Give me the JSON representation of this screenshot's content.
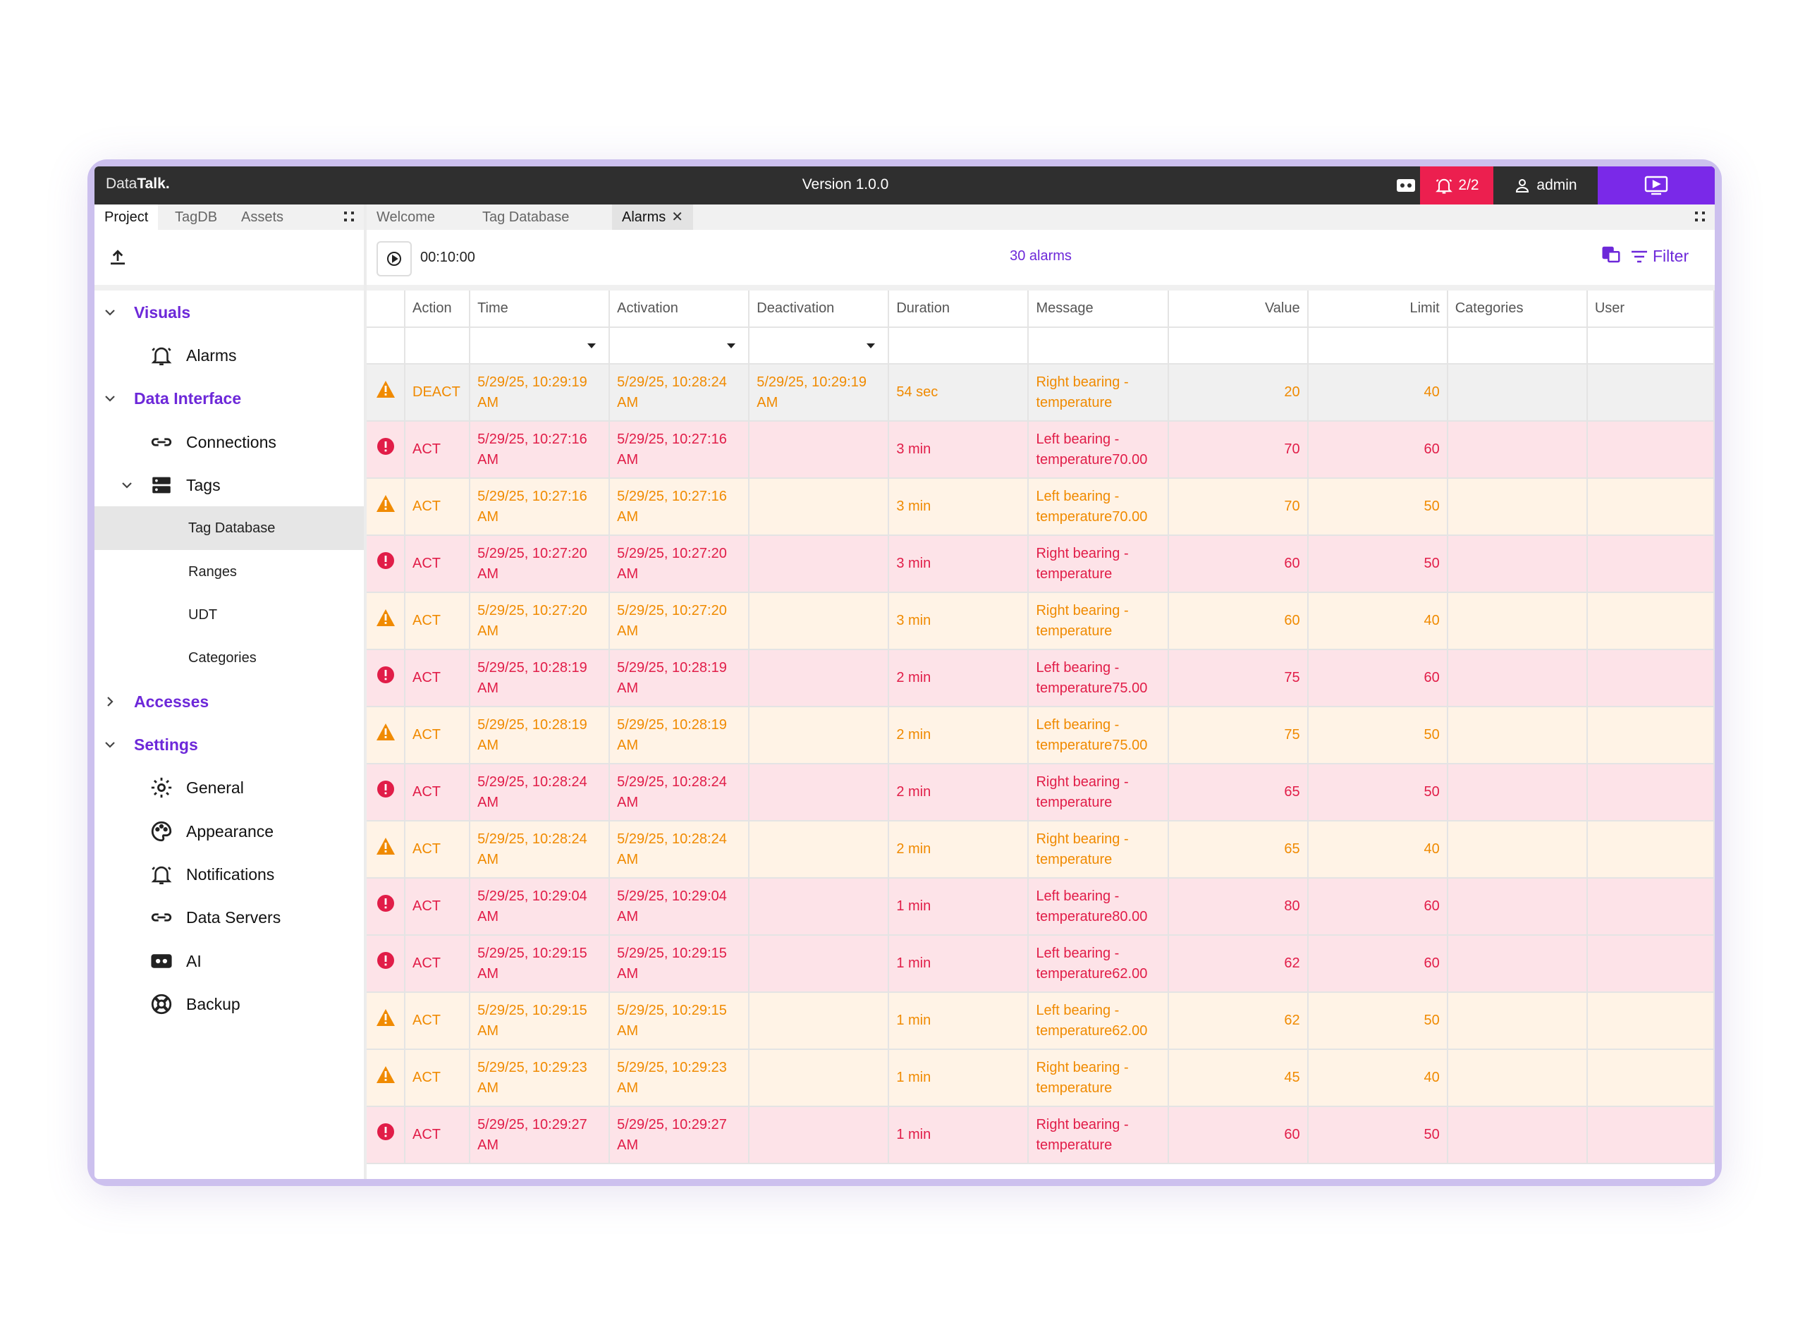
{
  "app": {
    "brand_prefix": "Data",
    "brand_bold": "Talk.",
    "version": "Version 1.0.0",
    "alarm_badge": "2/2",
    "user": "admin"
  },
  "left_tabs": [
    "Project",
    "TagDB",
    "Assets"
  ],
  "tree": {
    "visuals": "Visuals",
    "alarms": "Alarms",
    "data_interface": "Data Interface",
    "connections": "Connections",
    "tags": "Tags",
    "tag_database": "Tag Database",
    "ranges": "Ranges",
    "udt": "UDT",
    "categories": "Categories",
    "accesses": "Accesses",
    "settings": "Settings",
    "general": "General",
    "appearance": "Appearance",
    "notifications": "Notifications",
    "data_servers": "Data Servers",
    "ai": "AI",
    "backup": "Backup"
  },
  "doc_tabs": [
    "Welcome",
    "Tag Database",
    "Alarms"
  ],
  "toolbar": {
    "timer": "00:10:00",
    "count": "30 alarms",
    "filter": "Filter"
  },
  "columns": [
    "",
    "Action",
    "Time",
    "Activation",
    "Deactivation",
    "Duration",
    "Message",
    "Value",
    "Limit",
    "Categories",
    "User"
  ],
  "rows": [
    {
      "sev": "warning",
      "state": "deact",
      "action": "DEACT",
      "time": [
        "5/29/25, 10:29:19",
        "AM"
      ],
      "activation": [
        "5/29/25, 10:28:24",
        "AM"
      ],
      "deactivation": [
        "5/29/25, 10:29:19",
        "AM"
      ],
      "duration": "54 sec",
      "message": [
        "Right bearing -",
        "temperature"
      ],
      "value": "20",
      "limit": "40"
    },
    {
      "sev": "alarm",
      "state": "alarm",
      "action": "ACT",
      "time": [
        "5/29/25, 10:27:16",
        "AM"
      ],
      "activation": [
        "5/29/25, 10:27:16",
        "AM"
      ],
      "deactivation": [
        "",
        ""
      ],
      "duration": "3 min",
      "message": [
        "Left bearing -",
        "temperature70.00"
      ],
      "value": "70",
      "limit": "60"
    },
    {
      "sev": "warning",
      "state": "warn",
      "action": "ACT",
      "time": [
        "5/29/25, 10:27:16",
        "AM"
      ],
      "activation": [
        "5/29/25, 10:27:16",
        "AM"
      ],
      "deactivation": [
        "",
        ""
      ],
      "duration": "3 min",
      "message": [
        "Left bearing -",
        "temperature70.00"
      ],
      "value": "70",
      "limit": "50"
    },
    {
      "sev": "alarm",
      "state": "alarm",
      "action": "ACT",
      "time": [
        "5/29/25, 10:27:20",
        "AM"
      ],
      "activation": [
        "5/29/25, 10:27:20",
        "AM"
      ],
      "deactivation": [
        "",
        ""
      ],
      "duration": "3 min",
      "message": [
        "Right bearing -",
        "temperature"
      ],
      "value": "60",
      "limit": "50"
    },
    {
      "sev": "warning",
      "state": "warn",
      "action": "ACT",
      "time": [
        "5/29/25, 10:27:20",
        "AM"
      ],
      "activation": [
        "5/29/25, 10:27:20",
        "AM"
      ],
      "deactivation": [
        "",
        ""
      ],
      "duration": "3 min",
      "message": [
        "Right bearing -",
        "temperature"
      ],
      "value": "60",
      "limit": "40"
    },
    {
      "sev": "alarm",
      "state": "alarm",
      "action": "ACT",
      "time": [
        "5/29/25, 10:28:19",
        "AM"
      ],
      "activation": [
        "5/29/25, 10:28:19",
        "AM"
      ],
      "deactivation": [
        "",
        ""
      ],
      "duration": "2 min",
      "message": [
        "Left bearing -",
        "temperature75.00"
      ],
      "value": "75",
      "limit": "60"
    },
    {
      "sev": "warning",
      "state": "warn",
      "action": "ACT",
      "time": [
        "5/29/25, 10:28:19",
        "AM"
      ],
      "activation": [
        "5/29/25, 10:28:19",
        "AM"
      ],
      "deactivation": [
        "",
        ""
      ],
      "duration": "2 min",
      "message": [
        "Left bearing -",
        "temperature75.00"
      ],
      "value": "75",
      "limit": "50"
    },
    {
      "sev": "alarm",
      "state": "alarm",
      "action": "ACT",
      "time": [
        "5/29/25, 10:28:24",
        "AM"
      ],
      "activation": [
        "5/29/25, 10:28:24",
        "AM"
      ],
      "deactivation": [
        "",
        ""
      ],
      "duration": "2 min",
      "message": [
        "Right bearing -",
        "temperature"
      ],
      "value": "65",
      "limit": "50"
    },
    {
      "sev": "warning",
      "state": "warn",
      "action": "ACT",
      "time": [
        "5/29/25, 10:28:24",
        "AM"
      ],
      "activation": [
        "5/29/25, 10:28:24",
        "AM"
      ],
      "deactivation": [
        "",
        ""
      ],
      "duration": "2 min",
      "message": [
        "Right bearing -",
        "temperature"
      ],
      "value": "65",
      "limit": "40"
    },
    {
      "sev": "alarm",
      "state": "alarm",
      "action": "ACT",
      "time": [
        "5/29/25, 10:29:04",
        "AM"
      ],
      "activation": [
        "5/29/25, 10:29:04",
        "AM"
      ],
      "deactivation": [
        "",
        ""
      ],
      "duration": "1 min",
      "message": [
        "Left bearing -",
        "temperature80.00"
      ],
      "value": "80",
      "limit": "60"
    },
    {
      "sev": "alarm",
      "state": "alarm",
      "action": "ACT",
      "time": [
        "5/29/25, 10:29:15",
        "AM"
      ],
      "activation": [
        "5/29/25, 10:29:15",
        "AM"
      ],
      "deactivation": [
        "",
        ""
      ],
      "duration": "1 min",
      "message": [
        "Left bearing -",
        "temperature62.00"
      ],
      "value": "62",
      "limit": "60"
    },
    {
      "sev": "warning",
      "state": "warn",
      "action": "ACT",
      "time": [
        "5/29/25, 10:29:15",
        "AM"
      ],
      "activation": [
        "5/29/25, 10:29:15",
        "AM"
      ],
      "deactivation": [
        "",
        ""
      ],
      "duration": "1 min",
      "message": [
        "Left bearing -",
        "temperature62.00"
      ],
      "value": "62",
      "limit": "50"
    },
    {
      "sev": "warning",
      "state": "warn",
      "action": "ACT",
      "time": [
        "5/29/25, 10:29:23",
        "AM"
      ],
      "activation": [
        "5/29/25, 10:29:23",
        "AM"
      ],
      "deactivation": [
        "",
        ""
      ],
      "duration": "1 min",
      "message": [
        "Right bearing -",
        "temperature"
      ],
      "value": "45",
      "limit": "40"
    },
    {
      "sev": "alarm",
      "state": "alarm",
      "action": "ACT",
      "time": [
        "5/29/25, 10:29:27",
        "AM"
      ],
      "activation": [
        "5/29/25, 10:29:27",
        "AM"
      ],
      "deactivation": [
        "",
        ""
      ],
      "duration": "1 min",
      "message": [
        "Right bearing -",
        "temperature"
      ],
      "value": "60",
      "limit": "50"
    }
  ],
  "colors": {
    "accent": "#6d28d9",
    "alarm": "#e11d48",
    "warning": "#f08a00",
    "alarm_row_bg": "#fde3e8",
    "warning_row_bg": "#fff3e6",
    "topbar": "#2f2f2f",
    "alarm_badge_bg": "#ec1f4f",
    "monitor_bg": "#7a29e8"
  }
}
